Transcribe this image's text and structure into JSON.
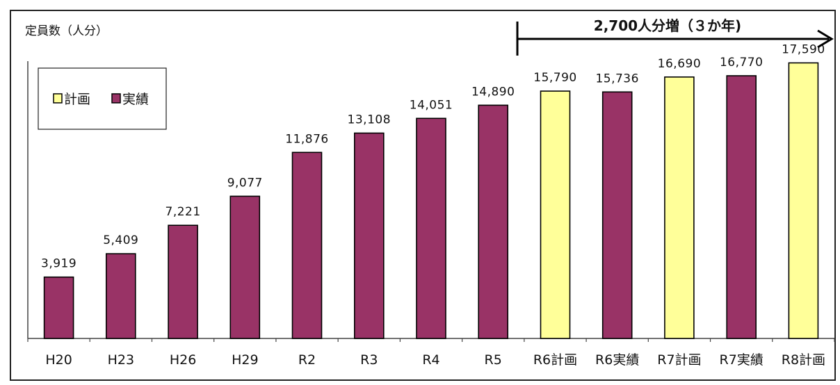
{
  "colors": {
    "plan": "#FFFF99",
    "actual": "#993366",
    "stroke": "#000000"
  },
  "chart_data": {
    "type": "bar",
    "ylabel": "定員数（人分）",
    "categories": [
      "H20",
      "H23",
      "H26",
      "H29",
      "R2",
      "R3",
      "R4",
      "R5",
      "R6計画",
      "R6実績",
      "R7計画",
      "R7実績",
      "R8計画"
    ],
    "values": [
      3919,
      5409,
      7221,
      9077,
      11876,
      13108,
      14051,
      14890,
      15790,
      15736,
      16690,
      16770,
      17590
    ],
    "value_labels": [
      "3,919",
      "5,409",
      "7,221",
      "9,077",
      "11,876",
      "13,108",
      "14,051",
      "14,890",
      "15,790",
      "15,736",
      "16,690",
      "16,770",
      "17,590"
    ],
    "kinds": [
      "actual",
      "actual",
      "actual",
      "actual",
      "actual",
      "actual",
      "actual",
      "actual",
      "plan",
      "actual",
      "plan",
      "actual",
      "plan"
    ],
    "legend": {
      "plan": "計画",
      "actual": "実績",
      "placement": "top-left"
    },
    "annotation": "2,700人分増（３か年)",
    "ylim": [
      0,
      18500
    ],
    "grid": false
  }
}
